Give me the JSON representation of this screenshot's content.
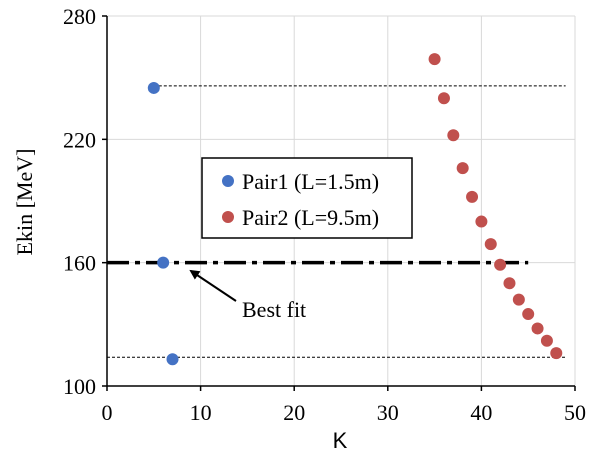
{
  "chart_data": {
    "type": "scatter",
    "xlabel": "K",
    "ylabel": "Ekin [MeV]",
    "xlim": [
      0,
      50
    ],
    "ylim": [
      100,
      280
    ],
    "xticks": [
      0,
      10,
      20,
      30,
      40,
      50
    ],
    "yticks": [
      100,
      160,
      220,
      280
    ],
    "grid": true,
    "legend_position": "center-left",
    "series": [
      {
        "name": "Pair1 (L=1.5m)",
        "color": "#4472C4",
        "points": [
          [
            5,
            245
          ],
          [
            6,
            160
          ],
          [
            7,
            113
          ]
        ]
      },
      {
        "name": "Pair2 (L=9.5m)",
        "color": "#C0504D",
        "points": [
          [
            35,
            259
          ],
          [
            36,
            240
          ],
          [
            37,
            222
          ],
          [
            38,
            206
          ],
          [
            39,
            192
          ],
          [
            40,
            180
          ],
          [
            41,
            169
          ],
          [
            42,
            159
          ],
          [
            43,
            150
          ],
          [
            44,
            142
          ],
          [
            45,
            135
          ],
          [
            46,
            128
          ],
          [
            47,
            122
          ],
          [
            48,
            116
          ]
        ]
      }
    ],
    "reference_lines": [
      {
        "style": "dash-dot",
        "x_start": 0,
        "x_end": 45,
        "y": 160
      },
      {
        "style": "dotted",
        "x_start": 5,
        "x_end": 49,
        "y": 246
      },
      {
        "style": "dotted",
        "x_start": 0,
        "x_end": 49,
        "y": 114
      }
    ],
    "annotation": {
      "text": "Best fit",
      "arrow_to": [
        9,
        160
      ]
    }
  }
}
